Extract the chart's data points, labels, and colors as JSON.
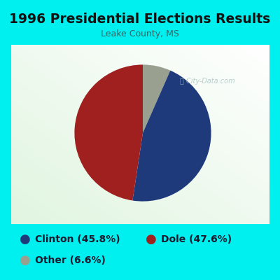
{
  "title": "1996 Presidential Elections Results",
  "subtitle": "Leake County, MS",
  "slices": [
    45.8,
    47.6,
    6.6
  ],
  "labels": [
    "Clinton",
    "Dole",
    "Other"
  ],
  "colors": [
    "#1e3a7a",
    "#a02020",
    "#9aA090"
  ],
  "title_fontsize": 13.5,
  "subtitle_fontsize": 9,
  "legend_fontsize": 10,
  "title_color": "#111111",
  "subtitle_color": "#336666",
  "legend_text_color": "#1a1a2e",
  "bg_color_outer": "#00f0f0",
  "bg_color_chart_tl": "#f0fff0",
  "bg_color_chart_br": "#e0f0e0",
  "watermark_color": "#a0bfc0",
  "startangle": 90
}
